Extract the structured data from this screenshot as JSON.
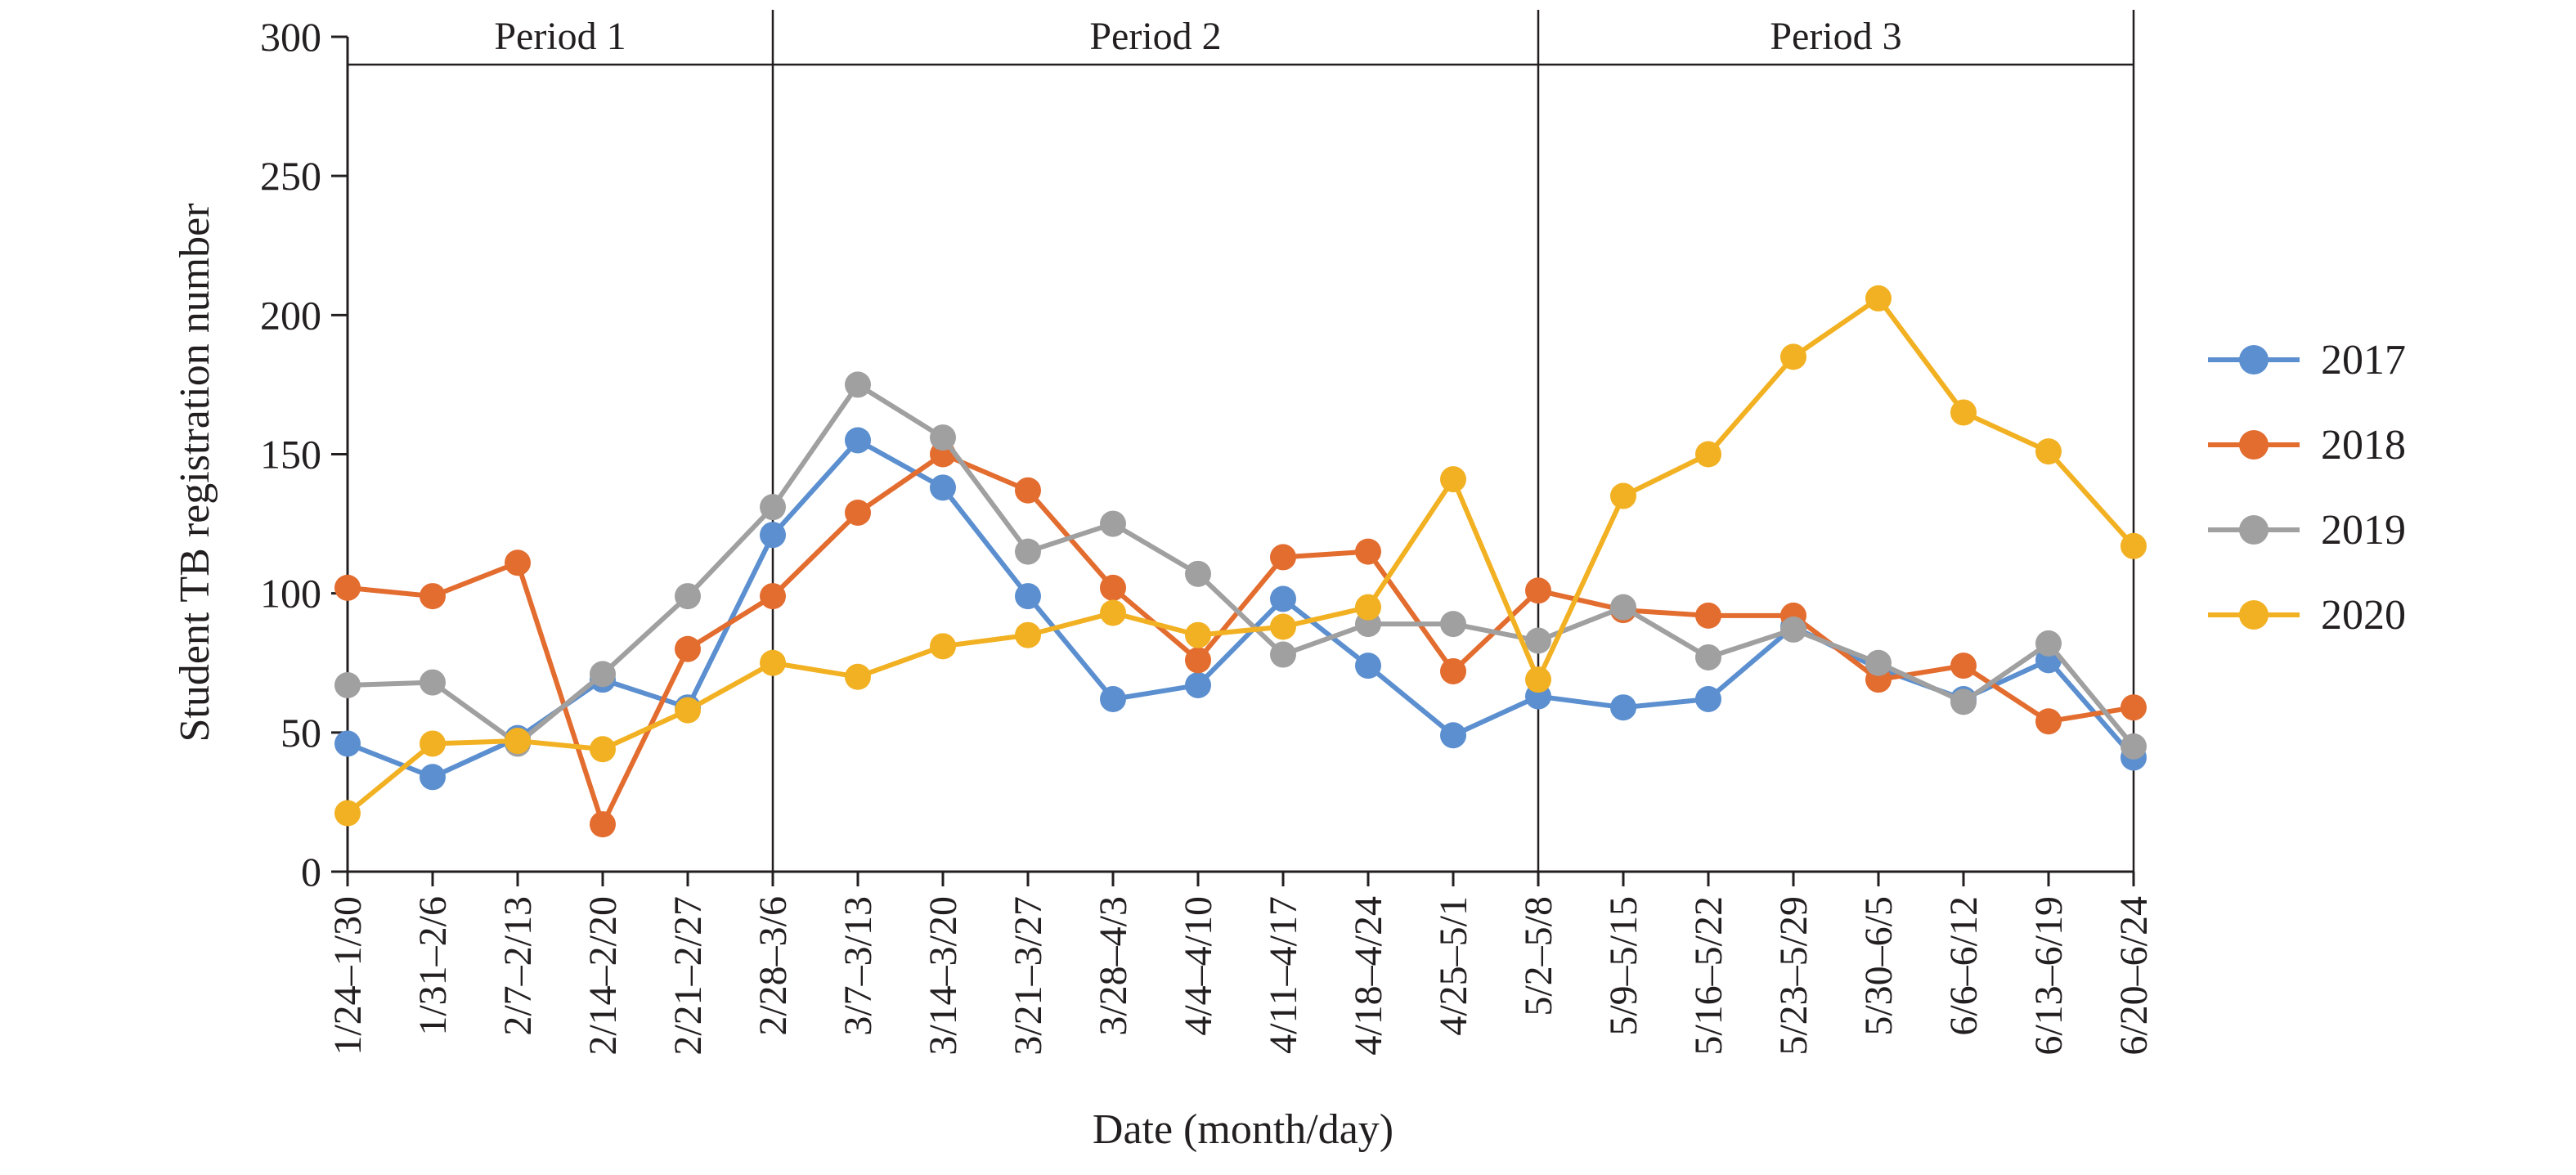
{
  "chart_data": {
    "type": "line",
    "xlabel": "Date (month/day)",
    "ylabel": "Student TB registration number",
    "ylim": [
      0,
      300
    ],
    "yticks": [
      0,
      50,
      100,
      150,
      200,
      250,
      300
    ],
    "grid": false,
    "legend_position": "right",
    "categories": [
      "1/24–1/30",
      "1/31–2/6",
      "2/7–2/13",
      "2/14–2/20",
      "2/21–2/27",
      "2/28–3/6",
      "3/7–3/13",
      "3/14–3/20",
      "3/21–3/27",
      "3/28–4/3",
      "4/4–4/10",
      "4/11–4/17",
      "4/18–4/24",
      "4/25–5/1",
      "5/2–5/8",
      "5/9–5/15",
      "5/16–5/22",
      "5/23–5/29",
      "5/30–6/5",
      "6/6–6/12",
      "6/13–6/19",
      "6/20–6/24"
    ],
    "periods": [
      {
        "label": "Period 1",
        "start_index": 0,
        "end_index": 5
      },
      {
        "label": "Period 2",
        "start_index": 5,
        "end_index": 14
      },
      {
        "label": "Period 3",
        "start_index": 14,
        "end_index": 21
      }
    ],
    "series": [
      {
        "name": "2017",
        "color": "#5b8fcf",
        "values": [
          46,
          34,
          48,
          69,
          59,
          121,
          155,
          138,
          99,
          62,
          67,
          98,
          74,
          49,
          63,
          59,
          62,
          88,
          73,
          62,
          76,
          41
        ]
      },
      {
        "name": "2018",
        "color": "#e36c2f",
        "values": [
          102,
          99,
          111,
          17,
          80,
          99,
          129,
          150,
          137,
          102,
          76,
          113,
          115,
          72,
          101,
          94,
          92,
          92,
          69,
          74,
          54,
          59
        ]
      },
      {
        "name": "2019",
        "color": "#a0a0a0",
        "values": [
          67,
          68,
          46,
          71,
          99,
          131,
          175,
          156,
          115,
          125,
          107,
          78,
          89,
          89,
          83,
          95,
          77,
          87,
          75,
          61,
          82,
          45
        ]
      },
      {
        "name": "2020",
        "color": "#f2b122",
        "values": [
          21,
          46,
          47,
          44,
          58,
          75,
          70,
          81,
          85,
          93,
          85,
          88,
          95,
          141,
          69,
          135,
          150,
          185,
          206,
          165,
          151,
          117
        ]
      }
    ]
  }
}
